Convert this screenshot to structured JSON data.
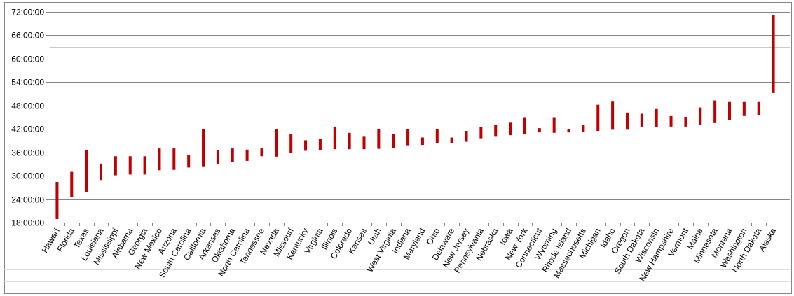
{
  "chart_data": {
    "type": "bar",
    "subtype": "floating-range",
    "title": "",
    "xlabel": "",
    "ylabel": "",
    "y_unit": "hours",
    "ylim": [
      18,
      72
    ],
    "y_major_step": 6,
    "y_minor_step": 3,
    "y_ticks": [
      "18:00:00",
      "24:00:00",
      "30:00:00",
      "36:00:00",
      "42:00:00",
      "48:00:00",
      "54:00:00",
      "60:00:00",
      "66:00:00",
      "72:00:00"
    ],
    "grid": true,
    "legend": "none",
    "colors": {
      "bar": "#c00000",
      "grid": "#868686",
      "minor_grid": "#c8c8c8",
      "axis": "#868686"
    },
    "categories": [
      "Hawai'i",
      "Florida",
      "Texas",
      "Louisiana",
      "Mississippi",
      "Alabama",
      "Georgia",
      "New Mexico",
      "Arizona",
      "South Carolina",
      "California",
      "Arkansas",
      "Oklahoma",
      "North Carolina",
      "Tennessee",
      "Nevada",
      "Missouri",
      "Kentucky",
      "Virginia",
      "Illinois",
      "Colorado",
      "Kansas",
      "Utah",
      "West Virginia",
      "Indiana",
      "Maryland",
      "Ohio",
      "Delaware",
      "New Jersey",
      "Pennsylvania",
      "Nebraska",
      "Iowa",
      "New York",
      "Connecticut",
      "Wyoming",
      "Rhode Island",
      "Massachusetts",
      "Michigan",
      "Idaho",
      "Oregon",
      "South Dakota",
      "Wisconsin",
      "New Hampshire",
      "Vermont",
      "Maine",
      "Minnesota",
      "Montana",
      "Washington",
      "North Dakota",
      "Alaska"
    ],
    "series": [
      {
        "low": [
          18.9,
          24.6,
          25.9,
          28.9,
          30.1,
          30.3,
          30.3,
          31.4,
          31.5,
          32.1,
          32.4,
          32.9,
          33.6,
          33.8,
          35.0,
          34.9,
          35.9,
          36.4,
          36.5,
          36.8,
          36.8,
          36.8,
          36.9,
          37.2,
          37.8,
          37.9,
          38.3,
          38.3,
          38.7,
          39.6,
          40.0,
          40.4,
          40.6,
          41.1,
          41.0,
          41.1,
          41.2,
          41.5,
          41.8,
          41.8,
          42.5,
          42.5,
          42.6,
          42.6,
          43.0,
          43.5,
          44.2,
          45.3,
          45.6,
          51.2
        ],
        "high": [
          28.4,
          31.0,
          36.6,
          33.1,
          35.0,
          35.0,
          35.0,
          37.0,
          37.0,
          35.3,
          42.0,
          36.6,
          37.0,
          36.7,
          37.0,
          42.0,
          40.6,
          39.1,
          39.4,
          42.6,
          41.0,
          40.0,
          42.0,
          40.7,
          42.0,
          39.8,
          42.0,
          39.8,
          41.5,
          42.5,
          43.1,
          43.6,
          45.0,
          42.2,
          45.0,
          42.0,
          43.0,
          48.2,
          49.0,
          46.2,
          45.9,
          47.1,
          45.3,
          45.1,
          47.5,
          49.3,
          48.9,
          48.9,
          48.9,
          71.1
        ]
      }
    ]
  }
}
